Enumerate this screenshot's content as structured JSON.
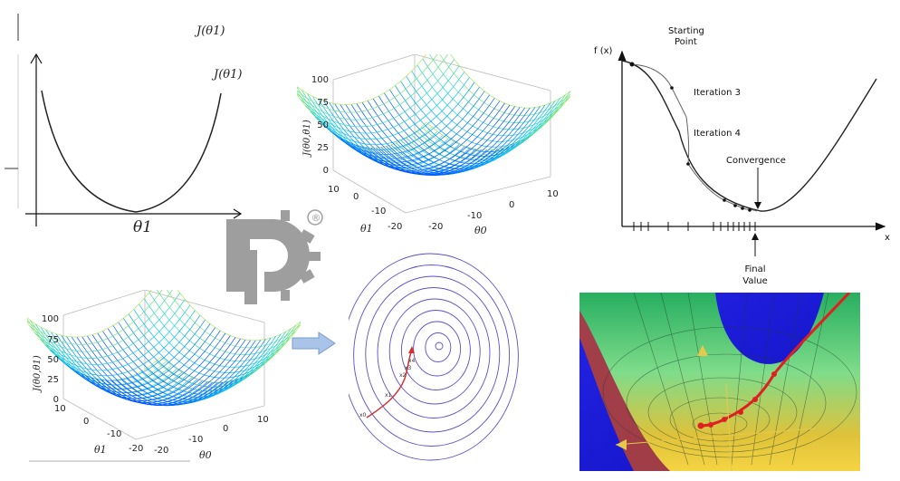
{
  "parabola": {
    "label_top": "J(θ1)",
    "label_curve": "J(θ1)",
    "x_label": "θ1"
  },
  "surface_top": {
    "z_label": "J(θ0,θ1)",
    "z_ticks": [
      "100",
      "75",
      "50",
      "25",
      "0"
    ],
    "theta1_ticks": [
      "10",
      "0",
      "-10",
      "-20"
    ],
    "theta0_ticks": [
      "-20",
      "-10",
      "0",
      "10"
    ],
    "theta1_label": "θ1",
    "theta0_label": "θ0"
  },
  "surface_bottom": {
    "z_label": "J(θ0,θ1)",
    "z_ticks": [
      "100",
      "75",
      "50",
      "25",
      "0"
    ],
    "theta1_ticks": [
      "10",
      "0",
      "-10",
      "-20"
    ],
    "theta0_ticks": [
      "-20",
      "-10",
      "0",
      "10"
    ],
    "theta1_label": "θ1",
    "theta0_label": "θ0"
  },
  "watermark": {
    "registered_mark": "®",
    "colors": {
      "logo": "#9e9e9e"
    }
  },
  "contour": {
    "point_labels": [
      "x0",
      "x1",
      "x2",
      "x3",
      "x4"
    ],
    "colors": {
      "ring": "#5a4fd1",
      "path": "#d43030"
    }
  },
  "gd_curve": {
    "y_label": "f (x)",
    "x_label": "x",
    "annotations": {
      "starting": "Starting\nPoint",
      "iter3": "Iteration 3",
      "iter4": "Iteration 4",
      "convergence": "Convergence",
      "final": "Final\nValue"
    }
  },
  "render3d": {
    "colors": {
      "background": "#1a1adb",
      "surface_top": "#2ecc71",
      "surface_bottom": "#f1c40f",
      "path": "#e02020"
    }
  }
}
